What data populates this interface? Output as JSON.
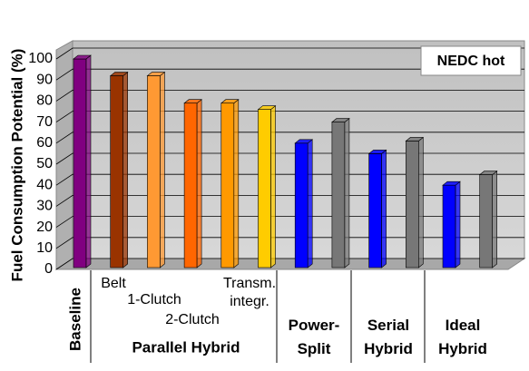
{
  "chart_data": {
    "type": "bar3d",
    "ylabel": "Fuel Consumption Potential (%)",
    "annotation": "NEDC hot",
    "categories": [
      null,
      "Belt",
      "1-Clutch",
      "2-Clutch",
      null,
      "Transm. integr.",
      null,
      null,
      null,
      null,
      null,
      null
    ],
    "values": [
      100,
      92,
      92,
      79,
      79,
      76,
      60,
      70,
      55,
      61,
      40,
      45
    ],
    "colors": [
      "#800080",
      "#993300",
      "#ff9933",
      "#ff6600",
      "#ff9900",
      "#ffcc00",
      "#0000ff",
      "#777777",
      "#0000ff",
      "#777777",
      "#0000ff",
      "#777777"
    ],
    "groups": [
      "Baseline",
      "Parallel Hybrid",
      "Power-Split",
      "Serial Hybrid",
      "Ideal Hybrid"
    ],
    "ylim": [
      0,
      100
    ],
    "yticks": [
      0,
      10,
      20,
      30,
      40,
      50,
      60,
      70,
      80,
      90,
      100
    ],
    "grid": true
  }
}
